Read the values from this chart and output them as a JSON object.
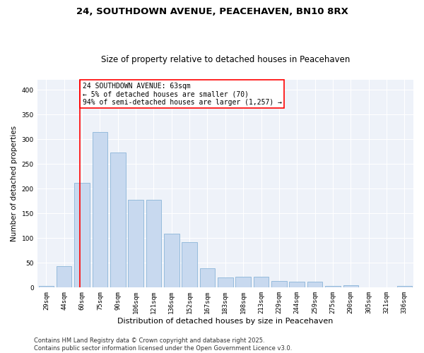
{
  "title_line1": "24, SOUTHDOWN AVENUE, PEACEHAVEN, BN10 8RX",
  "title_line2": "Size of property relative to detached houses in Peacehaven",
  "xlabel": "Distribution of detached houses by size in Peacehaven",
  "ylabel": "Number of detached properties",
  "categories": [
    "29sqm",
    "44sqm",
    "60sqm",
    "75sqm",
    "90sqm",
    "106sqm",
    "121sqm",
    "136sqm",
    "152sqm",
    "167sqm",
    "183sqm",
    "198sqm",
    "213sqm",
    "229sqm",
    "244sqm",
    "259sqm",
    "275sqm",
    "290sqm",
    "305sqm",
    "321sqm",
    "336sqm"
  ],
  "values": [
    3,
    43,
    212,
    315,
    273,
    178,
    178,
    109,
    92,
    39,
    21,
    22,
    22,
    14,
    12,
    12,
    4,
    5,
    1,
    1,
    3
  ],
  "bar_color": "#c8d9ef",
  "bar_edge_color": "#8ab4d8",
  "red_line_index": 2,
  "annotation_text": "24 SOUTHDOWN AVENUE: 63sqm\n← 5% of detached houses are smaller (70)\n94% of semi-detached houses are larger (1,257) →",
  "annotation_box_color": "white",
  "annotation_box_edge": "red",
  "ylim": [
    0,
    420
  ],
  "yticks": [
    0,
    50,
    100,
    150,
    200,
    250,
    300,
    350,
    400
  ],
  "background_color": "#eef2f9",
  "grid_color": "white",
  "footer_line1": "Contains HM Land Registry data © Crown copyright and database right 2025.",
  "footer_line2": "Contains public sector information licensed under the Open Government Licence v3.0.",
  "title_fontsize": 9.5,
  "subtitle_fontsize": 8.5,
  "xlabel_fontsize": 8,
  "ylabel_fontsize": 7.5,
  "tick_fontsize": 6.5,
  "annotation_fontsize": 7,
  "footer_fontsize": 6
}
